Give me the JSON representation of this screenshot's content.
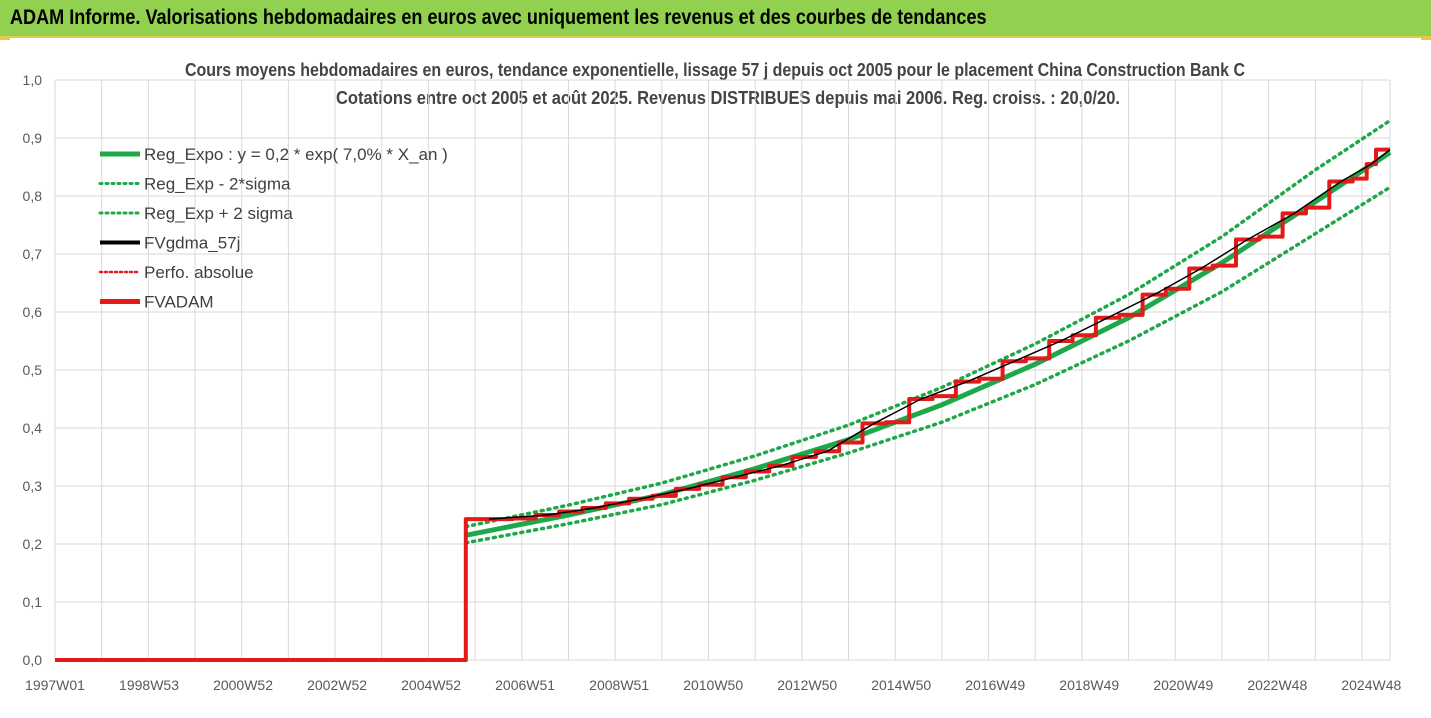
{
  "header": {
    "title": "ADAM Informe. Valorisations hebdomadaires en euros avec uniquement les revenus et des courbes de tendances"
  },
  "colors": {
    "header_bg": "#92d050",
    "trend": "#1fa84a",
    "trend_band": "#1fa84a",
    "smoothed": "#000000",
    "perf_abs": "#e02020",
    "fvadam": "#e41a1a",
    "grid": "#d9d9d9"
  },
  "chart_data": {
    "type": "line",
    "title": "Cours moyens hebdomadaires en euros, tendance exponentielle, lissage 57 j depuis oct 2005 pour le placement China Construction Bank C",
    "subtitle": "Cotations entre oct 2005 et août 2025. Revenus DISTRIBUES depuis mai 2006. Reg. croiss. : 20,0/20.",
    "xlabel": "",
    "ylabel": "",
    "ylim": [
      0,
      1.0
    ],
    "y_ticks": [
      "0,0",
      "0,1",
      "0,2",
      "0,3",
      "0,4",
      "0,5",
      "0,6",
      "0,7",
      "0,8",
      "0,9",
      "1,0"
    ],
    "x_ticks": [
      "1997W01",
      "1998W53",
      "2000W52",
      "2002W52",
      "2004W52",
      "2006W51",
      "2008W51",
      "2010W50",
      "2012W50",
      "2014W50",
      "2016W49",
      "2018W49",
      "2020W49",
      "2022W48",
      "2024W48"
    ],
    "x_range_years": [
      1997.0,
      2025.6
    ],
    "grid": true,
    "legend_position": "top-left",
    "legend": [
      "Reg_Expo : y = 0,2 * exp( 7,0% *  X_an )",
      "Reg_Exp - 2*sigma",
      "Reg_Exp + 2 sigma",
      "FVgdma_57j",
      "Perfo. absolue",
      "FVADAM"
    ],
    "series": [
      {
        "name": "Reg_Expo : y = 0,2 * exp( 7,0% *  X_an )",
        "style": "solid",
        "x": [
          2005.8,
          2008,
          2010,
          2012,
          2014,
          2016,
          2018,
          2020,
          2022,
          2024,
          2025.6
        ],
        "values": [
          0.215,
          0.25,
          0.285,
          0.33,
          0.38,
          0.44,
          0.51,
          0.59,
          0.685,
          0.79,
          0.875
        ]
      },
      {
        "name": "Reg_Exp - 2*sigma",
        "style": "dotted",
        "x": [
          2005.8,
          2008,
          2010,
          2012,
          2014,
          2016,
          2018,
          2020,
          2022,
          2024,
          2025.6
        ],
        "values": [
          0.202,
          0.235,
          0.268,
          0.31,
          0.357,
          0.41,
          0.475,
          0.55,
          0.635,
          0.735,
          0.815
        ]
      },
      {
        "name": "Reg_Exp + 2 sigma",
        "style": "dotted",
        "x": [
          2005.8,
          2008,
          2010,
          2012,
          2014,
          2016,
          2018,
          2020,
          2022,
          2024,
          2025.6
        ],
        "values": [
          0.23,
          0.267,
          0.305,
          0.352,
          0.405,
          0.47,
          0.545,
          0.63,
          0.73,
          0.845,
          0.93
        ]
      },
      {
        "name": "FVADAM",
        "style": "step",
        "x": [
          1997.0,
          2005.8,
          2005.8,
          2006.8,
          2007.3,
          2007.8,
          2008.3,
          2008.8,
          2009.3,
          2009.8,
          2010.3,
          2010.8,
          2011.3,
          2011.8,
          2012.3,
          2012.8,
          2013.3,
          2013.8,
          2014.3,
          2014.8,
          2015.3,
          2015.8,
          2016.3,
          2016.8,
          2017.3,
          2017.8,
          2018.3,
          2018.8,
          2019.3,
          2019.8,
          2020.3,
          2020.8,
          2021.3,
          2021.8,
          2022.3,
          2022.8,
          2023.3,
          2023.8,
          2024.3,
          2024.8,
          2025.1,
          2025.3,
          2025.6
        ],
        "values": [
          0.0,
          0.0,
          0.243,
          0.244,
          0.25,
          0.256,
          0.262,
          0.27,
          0.278,
          0.283,
          0.295,
          0.302,
          0.315,
          0.325,
          0.335,
          0.35,
          0.36,
          0.375,
          0.408,
          0.41,
          0.45,
          0.455,
          0.48,
          0.485,
          0.515,
          0.52,
          0.55,
          0.56,
          0.59,
          0.595,
          0.63,
          0.64,
          0.675,
          0.68,
          0.725,
          0.73,
          0.77,
          0.78,
          0.825,
          0.83,
          0.855,
          0.88,
          0.88
        ]
      }
    ]
  }
}
